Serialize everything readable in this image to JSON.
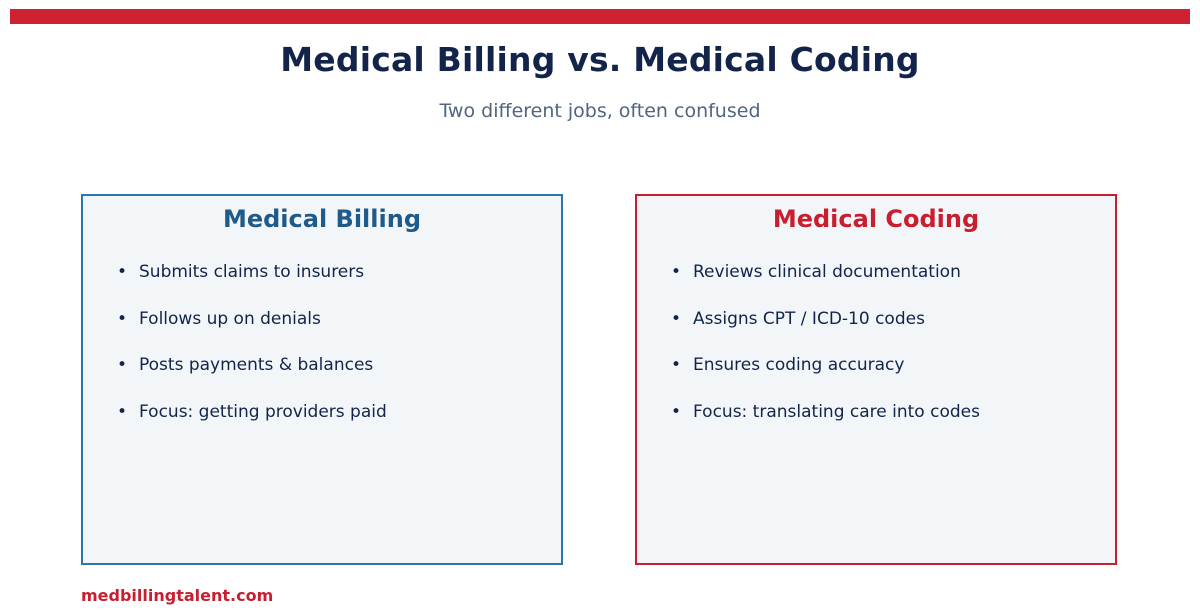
{
  "page": {
    "title": "Medical Billing vs. Medical Coding",
    "subtitle": "Two different jobs, often confused",
    "footer": "medbillingtalent.com"
  },
  "colors": {
    "accent_red": "#cd2232",
    "billing_blue": "#2c75ad",
    "title_navy": "#12244a",
    "card_background": "#f3f6f9"
  },
  "cards": [
    {
      "title": "Medical Billing",
      "items": [
        "Submits claims to insurers",
        "Follows up on denials",
        "Posts payments & balances",
        "Focus: getting providers paid"
      ]
    },
    {
      "title": "Medical Coding",
      "items": [
        "Reviews clinical documentation",
        "Assigns CPT / ICD-10 codes",
        "Ensures coding accuracy",
        "Focus: translating care into codes"
      ]
    }
  ],
  "bullet_glyph": "•"
}
